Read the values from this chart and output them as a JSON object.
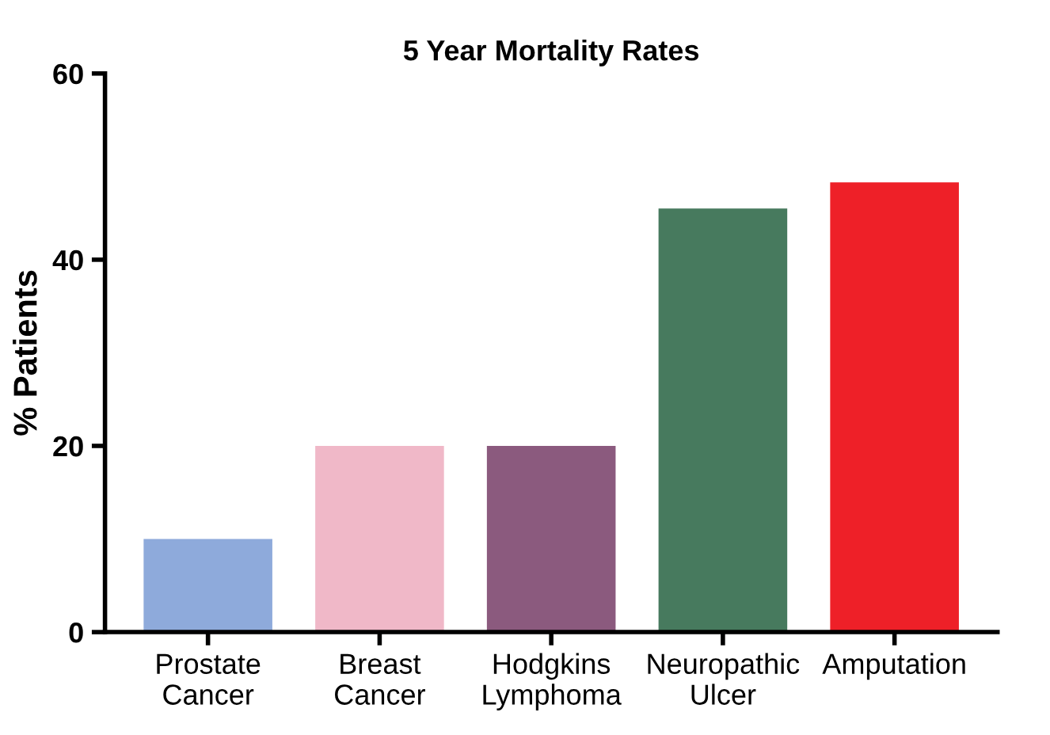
{
  "chart_data": {
    "type": "bar",
    "title": "5 Year Mortality Rates",
    "ylabel": "% Patients",
    "categories": [
      "Prostate\nCancer",
      "Breast\nCancer",
      "Hodgkins\nLymphoma",
      "Neuropathic\nUlcer",
      "Amputation"
    ],
    "values": [
      10,
      20,
      20,
      45.5,
      48.3
    ],
    "colors": [
      "#8eaadb",
      "#f0b8c8",
      "#8b5a7e",
      "#477a5e",
      "#ee2028"
    ],
    "ylim": [
      0,
      60
    ],
    "yticks": [
      0,
      20,
      40,
      60
    ],
    "grid": false,
    "legend": false
  }
}
